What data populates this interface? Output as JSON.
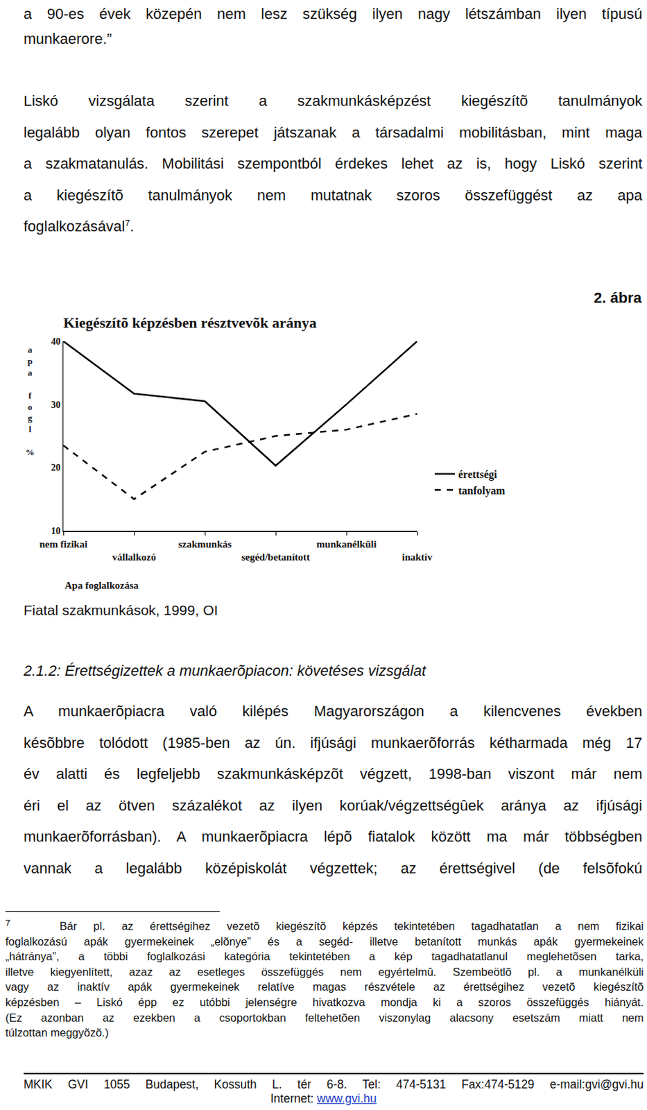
{
  "document": {
    "intro": {
      "lines": [
        "a 90-es évek közepén nem lesz szükség ilyen nagy létszámban ilyen típusú",
        "munkaerore.”"
      ]
    },
    "paragraph": {
      "lines": [
        "Liskó vizsgálata szerint a szakmunkásképzést kiegészítõ tanulmányok",
        "legalább olyan fontos szerepet játszanak a társadalmi mobilitásban, mint maga",
        "a szakmatanulás. Mobilitási szempontból érdekes lehet az is, hogy Liskó szerint",
        "a kiegészítõ tanulmányok nem mutatnak szoros összefüggést az apa",
        {
          "text": "foglalkozásával",
          "note": "7",
          "tail": "."
        }
      ]
    },
    "figure": {
      "label": "2. ábra",
      "caption": "Fiatal szakmunkások, 1999, OI"
    },
    "heading": "2.1.2: Érettségizettek a munkaerõpiacon: követéses vizsgálat",
    "section_paragraph": {
      "lines": [
        "A munkaerõpiacra való kilépés Magyarországon a kilencvenes években",
        "késõbbre tolódott (1985-ben az ún. ifjúsági munkaerõforrás kétharmada még 17",
        "év alatti és legfeljebb szakmunkásképzõt végzett, 1998-ban viszont már nem",
        "éri el az ötven százalékot az ilyen korúak/végzettségûek aránya az ifjúsági",
        "munkaerõforrásban). A munkaerõpiacra lépõ fiatalok között ma már többségben",
        "vannak a legalább középiskolát végzettek; az érettségivel (de felsõfokú"
      ]
    },
    "footnote": {
      "mark": "7",
      "lines": [
        "Bár pl. az érettségihez vezetõ kiegészítõ képzés tekintetében tagadhatatlan a nem fizikai",
        "foglalkozású apák gyermekeinek „elõnye” és a segéd- illetve betanított munkás apák gyermekeinek",
        "„hátránya”, a többi foglalkozási kategória tekintetében a kép tagadhatatlanul meglehetõsen tarka,",
        "illetve kiegyenlített, azaz az esetleges összefüggés nem egyértelmû. Szembeötlõ pl. a munkanélküli",
        "vagy az inaktív apák gyermekeinek relatíve magas részvétele az érettségihez vezetõ kiegészítõ",
        "képzésben – Liskó épp ez utóbbi jelenségre hivatkozva mondja ki a szoros összefüggés hiányát.",
        "(Ez azonban az ezekben a csoportokban feltehetõen viszonylag alacsony esetszám miatt nem",
        "túlzottan meggyõzõ.)"
      ]
    },
    "footer": {
      "address": "MKIK GVI 1055 Budapest, Kossuth L. tér 6-8. Tel: 474-5131 Fax:474-5129 e-mail:gvi@gvi.hu",
      "internet_label": "Internet:",
      "internet_link": "www.gvi.hu"
    }
  },
  "chart_data": {
    "type": "line",
    "title": "Kiegészítõ képzésben résztvevõk aránya",
    "x_label": "Apa foglalkozása",
    "y_label": "apa fogl %",
    "categories": [
      "nem fizikai",
      "vállalkozó",
      "szakmunkás",
      "segéd/betanított",
      "munkanélküli",
      "inaktív"
    ],
    "series": [
      {
        "name": "érettségi",
        "color": "#000000",
        "line_style": "solid",
        "values": [
          40,
          31.7,
          30.5,
          20.3,
          30,
          40
        ]
      },
      {
        "name": "tanfolyam",
        "color": "#000000",
        "line_style": "dash",
        "values": [
          23.5,
          15,
          22.5,
          25,
          26,
          28.5
        ]
      }
    ],
    "ylim": [
      10,
      40
    ],
    "yticks": [
      10,
      20,
      30,
      40
    ],
    "grid": false,
    "legend": "right"
  }
}
